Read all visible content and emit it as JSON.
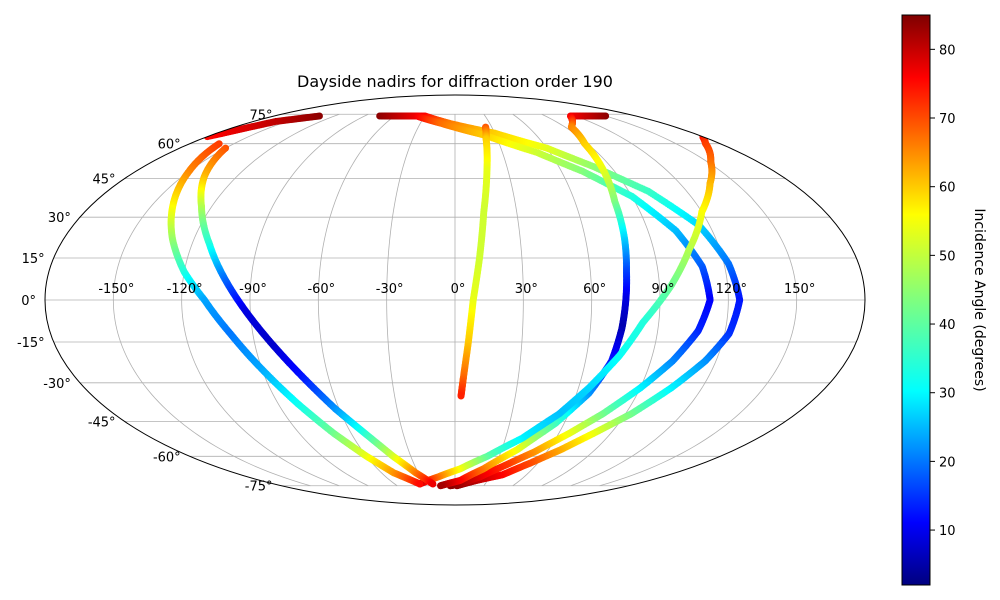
{
  "chart_data": {
    "type": "scatter",
    "projection": "mollweide",
    "title": "Dayside nadirs for diffraction order 190",
    "x_tick_labels": [
      {
        "value": -150,
        "label": "-150°"
      },
      {
        "value": -120,
        "label": "-120°"
      },
      {
        "value": -90,
        "label": "-90°"
      },
      {
        "value": -60,
        "label": "-60°"
      },
      {
        "value": -30,
        "label": "-30°"
      },
      {
        "value": 0,
        "label": "0°"
      },
      {
        "value": 30,
        "label": "30°"
      },
      {
        "value": 60,
        "label": "60°"
      },
      {
        "value": 90,
        "label": "90°"
      },
      {
        "value": 120,
        "label": "120°"
      },
      {
        "value": 150,
        "label": "150°"
      }
    ],
    "y_tick_labels": [
      {
        "value": 75,
        "label": "75°"
      },
      {
        "value": 60,
        "label": "60°"
      },
      {
        "value": 45,
        "label": "45°"
      },
      {
        "value": 30,
        "label": "30°"
      },
      {
        "value": 15,
        "label": "15°"
      },
      {
        "value": 0,
        "label": "0°"
      },
      {
        "value": -15,
        "label": "-15°"
      },
      {
        "value": -30,
        "label": "-30°"
      },
      {
        "value": -45,
        "label": "-45°"
      },
      {
        "value": -60,
        "label": "-60°"
      },
      {
        "value": -75,
        "label": "-75°"
      }
    ],
    "grid": true,
    "colorbar": {
      "label": "Incidence Angle (degrees)",
      "colormap": "jet",
      "range": [
        2,
        85
      ],
      "ticks": [
        10,
        20,
        30,
        40,
        50,
        60,
        70,
        80
      ]
    },
    "tracks": [
      {
        "points": [
          [
            -70,
            74,
            84
          ],
          [
            -30,
            74,
            75
          ],
          [
            -5,
            70,
            65
          ],
          [
            30,
            65,
            58
          ],
          [
            60,
            58,
            52
          ],
          [
            80,
            50,
            45
          ],
          [
            100,
            40,
            38
          ],
          [
            115,
            27,
            30
          ],
          [
            122,
            13,
            22
          ],
          [
            125,
            0,
            14
          ],
          [
            122,
            -12,
            16
          ],
          [
            115,
            -22,
            24
          ],
          [
            105,
            -32,
            32
          ],
          [
            93,
            -42,
            42
          ],
          [
            80,
            -50,
            52
          ],
          [
            68,
            -57,
            60
          ],
          [
            55,
            -63,
            68
          ],
          [
            40,
            -69,
            74
          ],
          [
            20,
            -72,
            80
          ],
          [
            2,
            -75,
            84
          ]
        ]
      },
      {
        "points": [
          [
            -75,
            74,
            84
          ],
          [
            -38,
            74,
            76
          ],
          [
            -12,
            70,
            66
          ],
          [
            22,
            64,
            58
          ],
          [
            52,
            56,
            50
          ],
          [
            72,
            48,
            44
          ],
          [
            90,
            38,
            36
          ],
          [
            103,
            25,
            28
          ],
          [
            110,
            12,
            20
          ],
          [
            112,
            0,
            12
          ],
          [
            108,
            -11,
            15
          ],
          [
            100,
            -22,
            23
          ],
          [
            90,
            -32,
            32
          ],
          [
            78,
            -42,
            42
          ],
          [
            66,
            -50,
            52
          ],
          [
            52,
            -58,
            62
          ],
          [
            38,
            -64,
            70
          ],
          [
            22,
            -70,
            76
          ],
          [
            5,
            -74,
            82
          ],
          [
            -5,
            -75,
            84
          ]
        ]
      },
      {
        "points": [
          [
            150,
            74,
            84
          ],
          [
            115,
            74,
            76
          ],
          [
            95,
            68,
            64
          ],
          [
            88,
            60,
            58
          ],
          [
            84,
            48,
            52
          ],
          [
            80,
            36,
            44
          ],
          [
            78,
            22,
            30
          ],
          [
            76,
            10,
            18
          ],
          [
            75,
            0,
            10
          ],
          [
            74,
            -10,
            6
          ],
          [
            72,
            -22,
            14
          ],
          [
            66,
            -34,
            24
          ],
          [
            55,
            -46,
            38
          ],
          [
            40,
            -57,
            52
          ],
          [
            22,
            -66,
            64
          ],
          [
            5,
            -72,
            74
          ],
          [
            -15,
            -75,
            82
          ]
        ]
      },
      {
        "points": [
          [
            -135,
            74,
            84
          ],
          [
            -160,
            71,
            80
          ],
          [
            -175,
            65,
            76
          ],
          [
            170,
            60,
            70
          ],
          [
            152,
            52,
            66
          ],
          [
            136,
            43,
            60
          ],
          [
            120,
            32,
            54
          ],
          [
            106,
            18,
            48
          ],
          [
            95,
            5,
            42
          ],
          [
            83,
            -8,
            36
          ],
          [
            75,
            -20,
            34
          ],
          [
            65,
            -32,
            30
          ],
          [
            55,
            -42,
            28
          ],
          [
            40,
            -52,
            32
          ],
          [
            22,
            -60,
            40
          ],
          [
            4,
            -66,
            52
          ],
          [
            -14,
            -70,
            64
          ],
          [
            -35,
            -74,
            78
          ]
        ]
      },
      {
        "points": [
          [
            25,
            68,
            68
          ],
          [
            22,
            62,
            58
          ],
          [
            18,
            48,
            52
          ],
          [
            14,
            32,
            50
          ],
          [
            11,
            15,
            50
          ],
          [
            8,
            0,
            52
          ],
          [
            6,
            -15,
            58
          ],
          [
            4,
            -28,
            66
          ],
          [
            3,
            -35,
            72
          ]
        ]
      },
      {
        "points": [
          [
            -160,
            60,
            70
          ],
          [
            -150,
            48,
            64
          ],
          [
            -140,
            35,
            55
          ],
          [
            -130,
            22,
            46
          ],
          [
            -120,
            10,
            36
          ],
          [
            -110,
            0,
            26
          ],
          [
            -100,
            -12,
            22
          ],
          [
            -90,
            -25,
            26
          ],
          [
            -80,
            -38,
            34
          ],
          [
            -70,
            -50,
            42
          ],
          [
            -60,
            -60,
            52
          ],
          [
            -50,
            -68,
            62
          ],
          [
            -35,
            -74,
            74
          ]
        ]
      },
      {
        "points": [
          [
            -150,
            58,
            68
          ],
          [
            -138,
            46,
            60
          ],
          [
            -125,
            34,
            48
          ],
          [
            -112,
            20,
            36
          ],
          [
            -102,
            8,
            22
          ],
          [
            -92,
            -4,
            10
          ],
          [
            -82,
            -16,
            8
          ],
          [
            -72,
            -28,
            14
          ],
          [
            -62,
            -40,
            24
          ],
          [
            -52,
            -50,
            36
          ],
          [
            -42,
            -60,
            50
          ],
          [
            -32,
            -68,
            64
          ],
          [
            -22,
            -74,
            76
          ]
        ]
      }
    ]
  }
}
